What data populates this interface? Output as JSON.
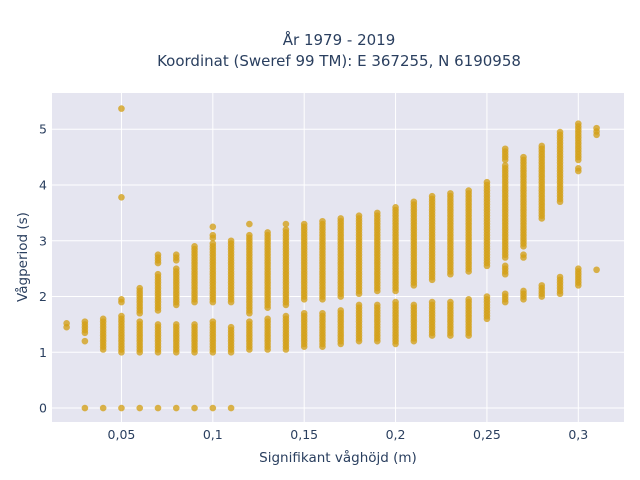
{
  "chart_data": {
    "type": "scatter",
    "title_line1": "År 1979 - 2019",
    "title_line2": "Koordinat (Sweref 99 TM): E 367255, N 6190958",
    "xlabel": "Signifikant våghöjd (m)",
    "ylabel": "Vågperiod (s)",
    "xlim": [
      0.012,
      0.325
    ],
    "ylim": [
      -0.25,
      5.65
    ],
    "xticks": [
      0.05,
      0.1,
      0.15,
      0.2,
      0.25,
      0.3
    ],
    "xtick_labels": [
      "0,05",
      "0,1",
      "0,15",
      "0,2",
      "0,25",
      "0,3"
    ],
    "yticks": [
      0,
      1,
      2,
      3,
      4,
      5
    ],
    "ytick_labels": [
      "0",
      "1",
      "2",
      "3",
      "4",
      "5"
    ],
    "grid": true,
    "marker_color": "#D4A017",
    "plot_bg": "#E5E5F0",
    "columns": [
      {
        "x": 0.02,
        "segments": [
          [
            1.45,
            1.52
          ]
        ]
      },
      {
        "x": 0.03,
        "segments": [
          [
            0,
            0
          ],
          [
            1.2,
            1.2
          ],
          [
            1.35,
            1.55
          ]
        ]
      },
      {
        "x": 0.04,
        "segments": [
          [
            0,
            0
          ],
          [
            1.05,
            1.6
          ]
        ]
      },
      {
        "x": 0.05,
        "segments": [
          [
            0,
            0
          ],
          [
            1.0,
            1.65
          ],
          [
            1.9,
            1.95
          ],
          [
            3.78,
            3.78
          ],
          [
            5.37,
            5.37
          ]
        ]
      },
      {
        "x": 0.06,
        "segments": [
          [
            0,
            0
          ],
          [
            1.0,
            1.55
          ],
          [
            1.7,
            2.15
          ]
        ]
      },
      {
        "x": 0.07,
        "segments": [
          [
            0,
            0
          ],
          [
            1.0,
            1.5
          ],
          [
            1.75,
            2.4
          ],
          [
            2.6,
            2.75
          ]
        ]
      },
      {
        "x": 0.08,
        "segments": [
          [
            0,
            0
          ],
          [
            1.0,
            1.5
          ],
          [
            1.85,
            2.5
          ],
          [
            2.65,
            2.75
          ]
        ]
      },
      {
        "x": 0.09,
        "segments": [
          [
            0,
            0
          ],
          [
            1.0,
            1.5
          ],
          [
            1.9,
            2.9
          ]
        ]
      },
      {
        "x": 0.1,
        "segments": [
          [
            0,
            0
          ],
          [
            1.0,
            1.55
          ],
          [
            1.9,
            2.95
          ],
          [
            3.05,
            3.1
          ],
          [
            3.25,
            3.25
          ]
        ]
      },
      {
        "x": 0.11,
        "segments": [
          [
            0,
            0
          ],
          [
            1.0,
            1.45
          ],
          [
            1.9,
            3.0
          ]
        ]
      },
      {
        "x": 0.12,
        "segments": [
          [
            1.05,
            1.55
          ],
          [
            1.7,
            3.1
          ],
          [
            3.3,
            3.3
          ]
        ]
      },
      {
        "x": 0.13,
        "segments": [
          [
            1.05,
            1.6
          ],
          [
            1.8,
            3.15
          ]
        ]
      },
      {
        "x": 0.14,
        "segments": [
          [
            1.05,
            1.65
          ],
          [
            1.85,
            3.2
          ],
          [
            3.3,
            3.3
          ]
        ]
      },
      {
        "x": 0.15,
        "segments": [
          [
            1.1,
            1.7
          ],
          [
            1.95,
            3.3
          ]
        ]
      },
      {
        "x": 0.16,
        "segments": [
          [
            1.1,
            1.7
          ],
          [
            1.95,
            3.35
          ]
        ]
      },
      {
        "x": 0.17,
        "segments": [
          [
            1.15,
            1.75
          ],
          [
            2.0,
            3.4
          ]
        ]
      },
      {
        "x": 0.18,
        "segments": [
          [
            1.2,
            1.85
          ],
          [
            2.05,
            3.45
          ]
        ]
      },
      {
        "x": 0.19,
        "segments": [
          [
            1.2,
            1.85
          ],
          [
            2.1,
            3.5
          ]
        ]
      },
      {
        "x": 0.2,
        "segments": [
          [
            1.15,
            1.9
          ],
          [
            2.1,
            3.6
          ]
        ]
      },
      {
        "x": 0.21,
        "segments": [
          [
            1.2,
            1.85
          ],
          [
            2.2,
            3.7
          ]
        ]
      },
      {
        "x": 0.22,
        "segments": [
          [
            1.3,
            1.9
          ],
          [
            2.3,
            3.8
          ]
        ]
      },
      {
        "x": 0.23,
        "segments": [
          [
            1.3,
            1.9
          ],
          [
            2.4,
            3.85
          ]
        ]
      },
      {
        "x": 0.24,
        "segments": [
          [
            1.3,
            1.95
          ],
          [
            2.45,
            3.9
          ]
        ]
      },
      {
        "x": 0.25,
        "segments": [
          [
            1.6,
            2.0
          ],
          [
            2.55,
            4.05
          ]
        ]
      },
      {
        "x": 0.26,
        "segments": [
          [
            1.9,
            2.05
          ],
          [
            2.4,
            2.55
          ],
          [
            2.7,
            4.35
          ],
          [
            4.45,
            4.65
          ]
        ]
      },
      {
        "x": 0.27,
        "segments": [
          [
            1.95,
            2.1
          ],
          [
            2.7,
            2.75
          ],
          [
            2.9,
            4.5
          ]
        ]
      },
      {
        "x": 0.28,
        "segments": [
          [
            2.0,
            2.2
          ],
          [
            3.4,
            4.7
          ]
        ]
      },
      {
        "x": 0.29,
        "segments": [
          [
            2.05,
            2.35
          ],
          [
            3.7,
            4.95
          ]
        ]
      },
      {
        "x": 0.3,
        "segments": [
          [
            2.2,
            2.5
          ],
          [
            4.25,
            4.3
          ],
          [
            4.45,
            5.1
          ]
        ]
      },
      {
        "x": 0.31,
        "segments": [
          [
            2.48,
            2.48
          ],
          [
            4.9,
            5.02
          ]
        ]
      }
    ]
  }
}
